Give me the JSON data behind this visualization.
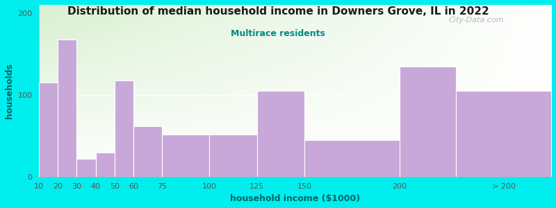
{
  "title": "Distribution of median household income in Downers Grove, IL in 2022",
  "subtitle": "Multirace residents",
  "xlabel": "household income ($1000)",
  "ylabel": "households",
  "bar_labels": [
    "10",
    "20",
    "30",
    "40",
    "50",
    "60",
    "75",
    "100",
    "125",
    "150",
    "200",
    "> 200"
  ],
  "bar_values": [
    115,
    168,
    22,
    30,
    118,
    62,
    52,
    52,
    105,
    45,
    135,
    105
  ],
  "bar_color": "#c8a8d8",
  "bg_outer": "#00EEEE",
  "title_color": "#1a1a1a",
  "subtitle_color": "#008888",
  "axis_label_color": "#006666",
  "tick_color": "#555555",
  "ylim": [
    0,
    210
  ],
  "yticks": [
    0,
    100,
    200
  ],
  "watermark": "City-Data.com",
  "positions": [
    10,
    20,
    30,
    40,
    50,
    60,
    75,
    100,
    125,
    150,
    200,
    230
  ],
  "widths": [
    10,
    10,
    10,
    10,
    10,
    15,
    25,
    25,
    25,
    50,
    30,
    50
  ],
  "xlim": [
    10,
    280
  ],
  "tick_positions": [
    10,
    20,
    30,
    40,
    50,
    60,
    75,
    100,
    125,
    150,
    200,
    255
  ]
}
